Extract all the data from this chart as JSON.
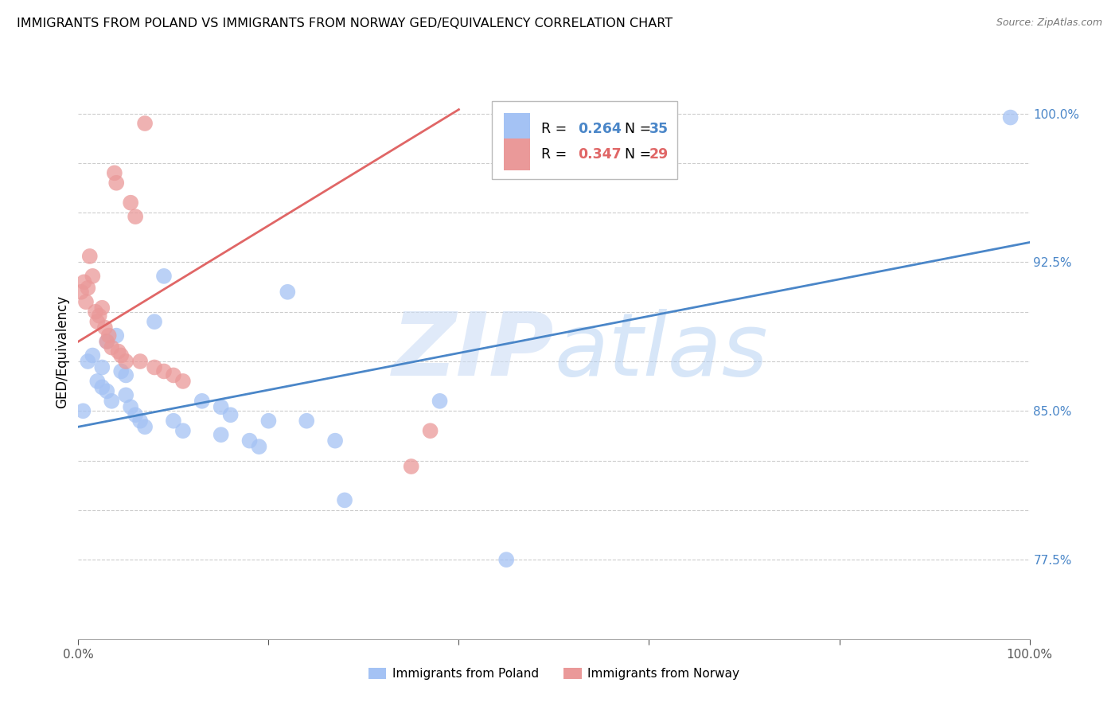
{
  "title": "IMMIGRANTS FROM POLAND VS IMMIGRANTS FROM NORWAY GED/EQUIVALENCY CORRELATION CHART",
  "source": "Source: ZipAtlas.com",
  "ylabel": "GED/Equivalency",
  "yticks": [
    77.5,
    80.0,
    82.5,
    85.0,
    87.5,
    90.0,
    92.5,
    95.0,
    97.5,
    100.0
  ],
  "ytick_labels": [
    "77.5%",
    "",
    "",
    "85.0%",
    "",
    "",
    "92.5%",
    "",
    "",
    "100.0%"
  ],
  "xmin": 0.0,
  "xmax": 1.0,
  "ymin": 73.5,
  "ymax": 102.5,
  "poland_color": "#a4c2f4",
  "norway_color": "#ea9999",
  "poland_line_color": "#4a86c8",
  "norway_line_color": "#e06666",
  "poland_r": "0.264",
  "poland_n": "35",
  "norway_r": "0.347",
  "norway_n": "29",
  "poland_scatter_x": [
    0.005,
    0.01,
    0.015,
    0.02,
    0.025,
    0.025,
    0.03,
    0.03,
    0.035,
    0.04,
    0.045,
    0.05,
    0.05,
    0.055,
    0.06,
    0.065,
    0.07,
    0.08,
    0.09,
    0.1,
    0.11,
    0.13,
    0.15,
    0.15,
    0.16,
    0.18,
    0.19,
    0.2,
    0.22,
    0.24,
    0.27,
    0.28,
    0.38,
    0.45,
    0.98
  ],
  "poland_scatter_y": [
    85.0,
    87.5,
    87.8,
    86.5,
    86.2,
    87.2,
    86.0,
    88.5,
    85.5,
    88.8,
    87.0,
    85.8,
    86.8,
    85.2,
    84.8,
    84.5,
    84.2,
    89.5,
    91.8,
    84.5,
    84.0,
    85.5,
    83.8,
    85.2,
    84.8,
    83.5,
    83.2,
    84.5,
    91.0,
    84.5,
    83.5,
    80.5,
    85.5,
    77.5,
    99.8
  ],
  "norway_scatter_x": [
    0.003,
    0.006,
    0.008,
    0.01,
    0.012,
    0.015,
    0.018,
    0.02,
    0.022,
    0.025,
    0.028,
    0.03,
    0.032,
    0.035,
    0.038,
    0.04,
    0.042,
    0.045,
    0.05,
    0.055,
    0.06,
    0.065,
    0.07,
    0.08,
    0.09,
    0.1,
    0.11,
    0.35,
    0.37
  ],
  "norway_scatter_y": [
    91.0,
    91.5,
    90.5,
    91.2,
    92.8,
    91.8,
    90.0,
    89.5,
    89.8,
    90.2,
    89.2,
    88.5,
    88.8,
    88.2,
    97.0,
    96.5,
    88.0,
    87.8,
    87.5,
    95.5,
    94.8,
    87.5,
    99.5,
    87.2,
    87.0,
    86.8,
    86.5,
    82.2,
    84.0
  ],
  "poland_line_x0": 0.0,
  "poland_line_x1": 1.0,
  "poland_line_y0": 84.2,
  "poland_line_y1": 93.5,
  "norway_line_x0": 0.0,
  "norway_line_x1": 0.4,
  "norway_line_y0": 88.5,
  "norway_line_y1": 100.2
}
